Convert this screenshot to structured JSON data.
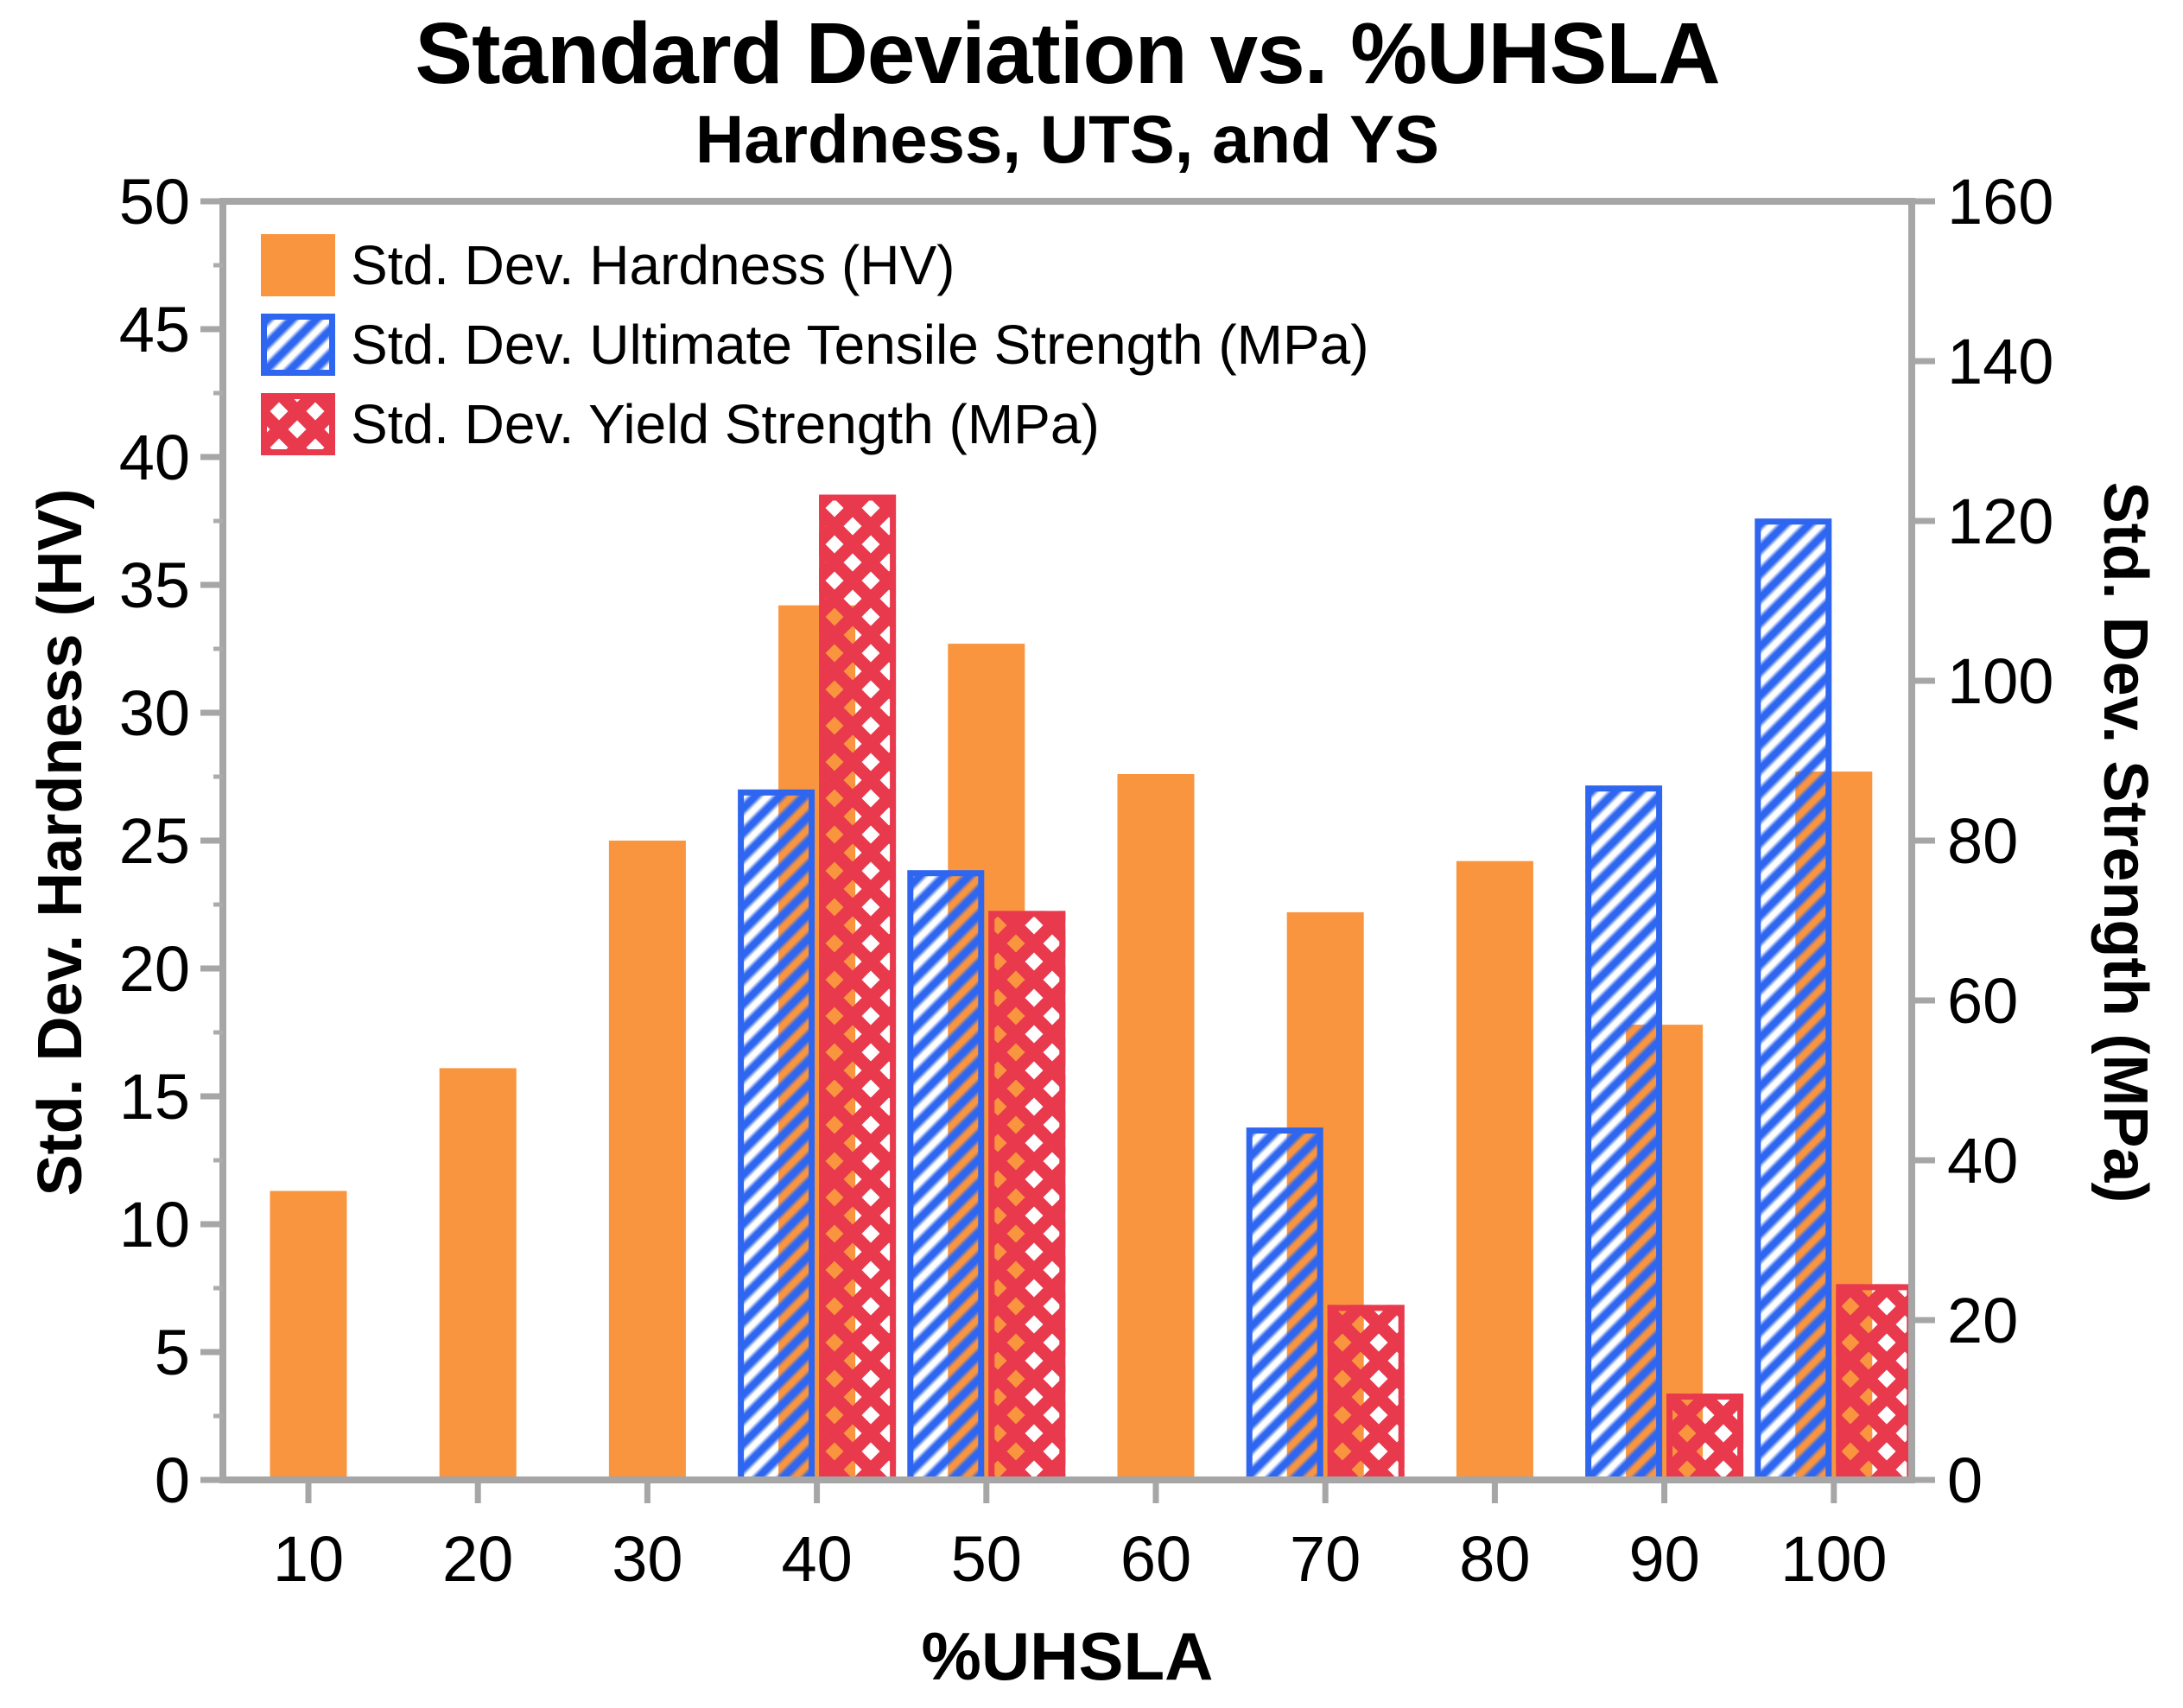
{
  "title": "Standard Deviation vs. %UHSLA",
  "subtitle": "Hardness, UTS, and YS",
  "chart_data": {
    "type": "bar",
    "categories": [
      10,
      20,
      30,
      40,
      50,
      60,
      70,
      80,
      90,
      100
    ],
    "xlabel": "%UHSLA",
    "ylabel_left": "Std. Dev. Hardness (HV)",
    "ylabel_right": "Std. Dev. Strength (MPa)",
    "ylim_left": [
      0,
      50
    ],
    "ylim_right": [
      0,
      160
    ],
    "yticks_left": [
      0,
      5,
      10,
      15,
      20,
      25,
      30,
      35,
      40,
      45,
      50
    ],
    "yticks_left_minor_step": 2.5,
    "yticks_right": [
      0,
      20,
      40,
      60,
      80,
      100,
      120,
      140,
      160
    ],
    "grid": false,
    "legend_position": "top-left-inside",
    "axis_color": "#A6A6A6",
    "minor_tick_color": "#ACACAC",
    "series": [
      {
        "name": "Std. Dev. Hardness (HV)",
        "axis": "left",
        "pattern": "solid",
        "color": "#F9953F",
        "values": [
          11.3,
          16.1,
          25.0,
          34.2,
          32.7,
          27.6,
          22.2,
          24.2,
          17.8,
          27.7
        ]
      },
      {
        "name": "Std. Dev. Ultimate Tensile Strength (MPa)",
        "axis": "right",
        "pattern": "diagonal-stripes",
        "color": "#2E66F0",
        "values": [
          null,
          null,
          null,
          86.4,
          76.3,
          null,
          44.1,
          null,
          86.9,
          120.3
        ]
      },
      {
        "name": "Std. Dev. Yield Strength (MPa)",
        "axis": "right",
        "pattern": "diamond-holes",
        "color": "#E9394D",
        "values": [
          null,
          null,
          null,
          123.3,
          71.2,
          null,
          21.9,
          null,
          10.8,
          24.5
        ]
      }
    ]
  }
}
